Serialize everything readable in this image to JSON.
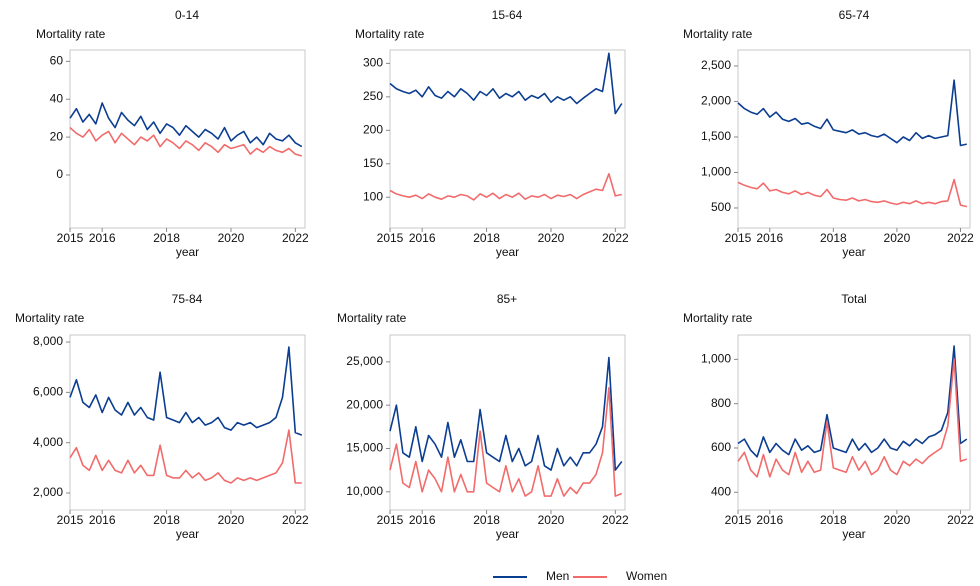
{
  "chart_data": [
    {
      "type": "line",
      "title": "0-14",
      "ylabel": "Mortality rate",
      "xlabel": "year",
      "x": [
        2015,
        2015.2,
        2015.4,
        2015.6,
        2015.8,
        2016,
        2016.2,
        2016.4,
        2016.6,
        2016.8,
        2017,
        2017.2,
        2017.4,
        2017.6,
        2017.8,
        2018,
        2018.2,
        2018.4,
        2018.6,
        2018.8,
        2019,
        2019.2,
        2019.4,
        2019.6,
        2019.8,
        2020,
        2020.2,
        2020.4,
        2020.6,
        2020.8,
        2021,
        2021.2,
        2021.4,
        2021.6,
        2021.8,
        2022,
        2022.2
      ],
      "xlim": [
        2015,
        2022.3
      ],
      "xticks": [
        2015,
        2016,
        2018,
        2020,
        2022
      ],
      "ylim": [
        -28,
        66
      ],
      "yticks": [
        0,
        20,
        40,
        60
      ],
      "series": [
        {
          "name": "Men",
          "color": "#0b3d91",
          "values": [
            30,
            35,
            28,
            32,
            27,
            38,
            30,
            25,
            33,
            29,
            26,
            31,
            24,
            28,
            22,
            27,
            25,
            21,
            26,
            23,
            20,
            24,
            22,
            19,
            25,
            18,
            21,
            23,
            17,
            20,
            16,
            22,
            19,
            18,
            21,
            17,
            15
          ]
        },
        {
          "name": "Women",
          "color": "#f26b6b",
          "values": [
            25,
            22,
            20,
            24,
            18,
            21,
            23,
            17,
            22,
            19,
            16,
            20,
            18,
            21,
            15,
            19,
            17,
            14,
            18,
            16,
            13,
            17,
            15,
            12,
            16,
            14,
            15,
            16,
            11,
            14,
            12,
            15,
            13,
            12,
            14,
            11,
            10
          ]
        }
      ]
    },
    {
      "type": "line",
      "title": "15-64",
      "ylabel": "Mortality rate",
      "xlabel": "year",
      "x": [
        2015,
        2015.2,
        2015.4,
        2015.6,
        2015.8,
        2016,
        2016.2,
        2016.4,
        2016.6,
        2016.8,
        2017,
        2017.2,
        2017.4,
        2017.6,
        2017.8,
        2018,
        2018.2,
        2018.4,
        2018.6,
        2018.8,
        2019,
        2019.2,
        2019.4,
        2019.6,
        2019.8,
        2020,
        2020.2,
        2020.4,
        2020.6,
        2020.8,
        2021,
        2021.2,
        2021.4,
        2021.6,
        2021.8,
        2022,
        2022.2
      ],
      "xlim": [
        2015,
        2022.3
      ],
      "xticks": [
        2015,
        2016,
        2018,
        2020,
        2022
      ],
      "ylim": [
        54,
        320
      ],
      "yticks": [
        100,
        150,
        200,
        250,
        300
      ],
      "series": [
        {
          "name": "Men",
          "color": "#0b3d91",
          "values": [
            270,
            262,
            258,
            255,
            260,
            250,
            265,
            252,
            248,
            258,
            250,
            262,
            255,
            245,
            258,
            252,
            262,
            248,
            255,
            250,
            258,
            245,
            252,
            248,
            255,
            242,
            250,
            245,
            250,
            240,
            248,
            255,
            262,
            258,
            315,
            225,
            240
          ]
        },
        {
          "name": "Women",
          "color": "#f26b6b",
          "values": [
            110,
            105,
            102,
            100,
            103,
            98,
            105,
            100,
            97,
            102,
            100,
            104,
            102,
            96,
            105,
            100,
            106,
            98,
            104,
            100,
            106,
            97,
            102,
            100,
            104,
            98,
            103,
            101,
            104,
            98,
            104,
            108,
            112,
            110,
            135,
            102,
            104
          ]
        }
      ]
    },
    {
      "type": "line",
      "title": "65-74",
      "ylabel": "Mortality rate",
      "xlabel": "year",
      "x": [
        2015,
        2015.2,
        2015.4,
        2015.6,
        2015.8,
        2016,
        2016.2,
        2016.4,
        2016.6,
        2016.8,
        2017,
        2017.2,
        2017.4,
        2017.6,
        2017.8,
        2018,
        2018.2,
        2018.4,
        2018.6,
        2018.8,
        2019,
        2019.2,
        2019.4,
        2019.6,
        2019.8,
        2020,
        2020.2,
        2020.4,
        2020.6,
        2020.8,
        2021,
        2021.2,
        2021.4,
        2021.6,
        2021.8,
        2022,
        2022.2
      ],
      "xlim": [
        2015,
        2022.3
      ],
      "xticks": [
        2015,
        2016,
        2018,
        2020,
        2022
      ],
      "ylim": [
        218,
        2725
      ],
      "yticks": [
        500,
        {
          "value": 1000,
          "label": "1,000"
        },
        {
          "value": 1500,
          "label": "1,500"
        },
        {
          "value": 2000,
          "label": "2,000"
        },
        {
          "value": 2500,
          "label": "2,500"
        }
      ],
      "series": [
        {
          "name": "Men",
          "color": "#0b3d91",
          "values": [
            1980,
            1900,
            1850,
            1820,
            1900,
            1780,
            1850,
            1750,
            1720,
            1760,
            1680,
            1700,
            1650,
            1620,
            1750,
            1600,
            1580,
            1560,
            1600,
            1540,
            1560,
            1520,
            1500,
            1540,
            1480,
            1420,
            1500,
            1450,
            1560,
            1480,
            1520,
            1480,
            1500,
            1520,
            2300,
            1380,
            1400
          ]
        },
        {
          "name": "Women",
          "color": "#f26b6b",
          "values": [
            860,
            820,
            790,
            770,
            850,
            740,
            760,
            720,
            700,
            740,
            690,
            720,
            680,
            660,
            760,
            640,
            620,
            610,
            640,
            600,
            620,
            590,
            580,
            600,
            570,
            550,
            580,
            560,
            600,
            560,
            580,
            560,
            590,
            600,
            900,
            540,
            520
          ]
        }
      ]
    },
    {
      "type": "line",
      "title": "75-84",
      "ylabel": "Mortality rate",
      "xlabel": "year",
      "x": [
        2015,
        2015.2,
        2015.4,
        2015.6,
        2015.8,
        2016,
        2016.2,
        2016.4,
        2016.6,
        2016.8,
        2017,
        2017.2,
        2017.4,
        2017.6,
        2017.8,
        2018,
        2018.2,
        2018.4,
        2018.6,
        2018.8,
        2019,
        2019.2,
        2019.4,
        2019.6,
        2019.8,
        2020,
        2020.2,
        2020.4,
        2020.6,
        2020.8,
        2021,
        2021.2,
        2021.4,
        2021.6,
        2021.8,
        2022,
        2022.2
      ],
      "xlim": [
        2015,
        2022.3
      ],
      "xticks": [
        2015,
        2016,
        2018,
        2020,
        2022
      ],
      "ylim": [
        1325,
        8280
      ],
      "yticks": [
        {
          "value": 2000,
          "label": "2,000"
        },
        {
          "value": 4000,
          "label": "4,000"
        },
        {
          "value": 6000,
          "label": "6,000"
        },
        {
          "value": 8000,
          "label": "8,000"
        }
      ],
      "series": [
        {
          "name": "Men",
          "color": "#0b3d91",
          "values": [
            5800,
            6500,
            5600,
            5400,
            5900,
            5200,
            5800,
            5300,
            5100,
            5600,
            5100,
            5400,
            5000,
            4900,
            6800,
            5000,
            4900,
            4800,
            5200,
            4800,
            5000,
            4700,
            4800,
            5000,
            4600,
            4500,
            4800,
            4700,
            4800,
            4600,
            4700,
            4800,
            5000,
            5800,
            7800,
            4400,
            4300
          ]
        },
        {
          "name": "Women",
          "color": "#f26b6b",
          "values": [
            3400,
            3800,
            3100,
            2900,
            3500,
            2900,
            3300,
            2900,
            2800,
            3300,
            2800,
            3100,
            2700,
            2700,
            3900,
            2700,
            2600,
            2600,
            2900,
            2600,
            2800,
            2500,
            2600,
            2800,
            2500,
            2400,
            2600,
            2500,
            2600,
            2500,
            2600,
            2700,
            2800,
            3200,
            4500,
            2400,
            2400
          ]
        }
      ]
    },
    {
      "type": "line",
      "title": "85+",
      "ylabel": "Mortality rate",
      "xlabel": "year",
      "x": [
        2015,
        2015.2,
        2015.4,
        2015.6,
        2015.8,
        2016,
        2016.2,
        2016.4,
        2016.6,
        2016.8,
        2017,
        2017.2,
        2017.4,
        2017.6,
        2017.8,
        2018,
        2018.2,
        2018.4,
        2018.6,
        2018.8,
        2019,
        2019.2,
        2019.4,
        2019.6,
        2019.8,
        2020,
        2020.2,
        2020.4,
        2020.6,
        2020.8,
        2021,
        2021.2,
        2021.4,
        2021.6,
        2021.8,
        2022,
        2022.2
      ],
      "xlim": [
        2015,
        2022.3
      ],
      "xticks": [
        2015,
        2016,
        2018,
        2020,
        2022
      ],
      "ylim": [
        7900,
        28100
      ],
      "yticks": [
        {
          "value": 10000,
          "label": "10,000"
        },
        {
          "value": 15000,
          "label": "15,000"
        },
        {
          "value": 20000,
          "label": "20,000"
        },
        {
          "value": 25000,
          "label": "25,000"
        }
      ],
      "series": [
        {
          "name": "Men",
          "color": "#0b3d91",
          "values": [
            17000,
            20000,
            14500,
            14000,
            17500,
            13500,
            16500,
            15500,
            14000,
            18000,
            14000,
            16000,
            13500,
            13500,
            19500,
            14500,
            14000,
            13500,
            16500,
            13500,
            15000,
            13000,
            13500,
            16500,
            13000,
            12500,
            15000,
            13000,
            14000,
            13000,
            14500,
            14500,
            15500,
            17500,
            25500,
            12500,
            13500
          ]
        },
        {
          "name": "Women",
          "color": "#f26b6b",
          "values": [
            12500,
            15500,
            11000,
            10500,
            13500,
            10000,
            12500,
            11500,
            10000,
            14000,
            10000,
            12000,
            10000,
            10000,
            17000,
            11000,
            10500,
            10000,
            13000,
            10000,
            11500,
            9500,
            10000,
            13000,
            9500,
            9500,
            11500,
            9500,
            10500,
            9800,
            11000,
            11000,
            12000,
            14500,
            22000,
            9500,
            9800
          ]
        }
      ]
    },
    {
      "type": "line",
      "title": "Total",
      "ylabel": "Mortality rate",
      "xlabel": "year",
      "x": [
        2015,
        2015.2,
        2015.4,
        2015.6,
        2015.8,
        2016,
        2016.2,
        2016.4,
        2016.6,
        2016.8,
        2017,
        2017.2,
        2017.4,
        2017.6,
        2017.8,
        2018,
        2018.2,
        2018.4,
        2018.6,
        2018.8,
        2019,
        2019.2,
        2019.4,
        2019.6,
        2019.8,
        2020,
        2020.2,
        2020.4,
        2020.6,
        2020.8,
        2021,
        2021.2,
        2021.4,
        2021.6,
        2021.8,
        2022,
        2022.2
      ],
      "xlim": [
        2015,
        2022.3
      ],
      "xticks": [
        2015,
        2016,
        2018,
        2020,
        2022
      ],
      "ylim": [
        320,
        1110
      ],
      "yticks": [
        400,
        600,
        800,
        {
          "value": 1000,
          "label": "1,000"
        }
      ],
      "series": [
        {
          "name": "Men",
          "color": "#0b3d91",
          "values": [
            620,
            640,
            590,
            560,
            650,
            580,
            620,
            590,
            570,
            640,
            590,
            610,
            580,
            590,
            750,
            600,
            590,
            580,
            640,
            590,
            620,
            580,
            600,
            640,
            600,
            590,
            630,
            610,
            640,
            620,
            650,
            660,
            680,
            760,
            1060,
            620,
            640
          ]
        },
        {
          "name": "Women",
          "color": "#f26b6b",
          "values": [
            540,
            580,
            500,
            470,
            570,
            470,
            550,
            500,
            480,
            580,
            490,
            540,
            490,
            500,
            720,
            510,
            500,
            490,
            560,
            500,
            540,
            480,
            500,
            560,
            500,
            480,
            540,
            520,
            550,
            530,
            560,
            580,
            600,
            700,
            1000,
            540,
            550
          ]
        }
      ]
    }
  ]
}
